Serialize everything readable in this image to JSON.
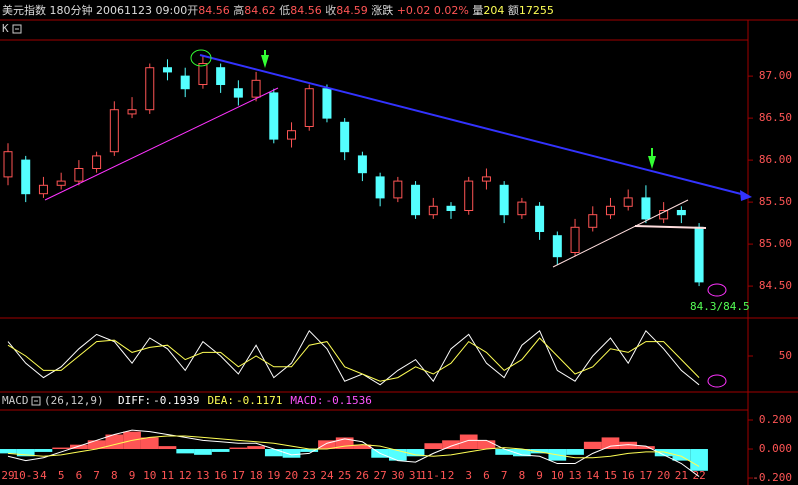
{
  "header": {
    "symbol": "美元指数",
    "period": "180分钟",
    "date": "20061123",
    "time": "09:00",
    "fields": [
      {
        "label": "开",
        "value": 84.56
      },
      {
        "label": "高",
        "value": 84.62
      },
      {
        "label": "低",
        "value": 84.56
      },
      {
        "label": "收",
        "value": 84.59
      }
    ],
    "change_label": "涨跌",
    "change": "+0.02",
    "change_pct": "0.02%",
    "volume_label": "量",
    "volume": 204,
    "amount_label": "额",
    "amount": 17255
  },
  "chart_data": [
    {
      "type": "candlestick",
      "panel_label": "K",
      "annotation": "84.3/84.5",
      "categories": [
        "29",
        "10-3",
        "4",
        "5",
        "6",
        "7",
        "8",
        "9",
        "10",
        "11",
        "12",
        "13",
        "16",
        "17",
        "18",
        "19",
        "20",
        "23",
        "24",
        "25",
        "26",
        "27",
        "30",
        "31",
        "11-1",
        "2",
        "3",
        "6",
        "7",
        "8",
        "9",
        "10",
        "13",
        "14",
        "15",
        "16",
        "17",
        "20",
        "21",
        "22"
      ],
      "open": [
        85.8,
        86.0,
        85.6,
        85.7,
        85.75,
        85.9,
        86.1,
        86.55,
        86.6,
        87.1,
        87.0,
        86.9,
        87.1,
        86.85,
        86.75,
        86.8,
        86.25,
        86.4,
        86.85,
        86.45,
        86.05,
        85.8,
        85.55,
        85.7,
        85.35,
        85.45,
        85.4,
        85.75,
        85.7,
        85.35,
        85.45,
        85.1,
        84.9,
        85.2,
        85.35,
        85.45,
        85.55,
        85.3,
        85.4,
        85.2
      ],
      "high": [
        86.2,
        86.05,
        85.8,
        85.85,
        86.0,
        86.1,
        86.7,
        86.75,
        87.15,
        87.2,
        87.1,
        87.25,
        87.15,
        86.95,
        87.05,
        86.85,
        86.45,
        86.9,
        86.9,
        86.5,
        86.1,
        85.85,
        85.8,
        85.75,
        85.55,
        85.5,
        85.8,
        85.9,
        85.75,
        85.55,
        85.5,
        85.15,
        85.3,
        85.45,
        85.55,
        85.65,
        85.7,
        85.5,
        85.45,
        85.25
      ],
      "low": [
        85.7,
        85.5,
        85.55,
        85.65,
        85.7,
        85.85,
        86.05,
        86.5,
        86.55,
        86.95,
        86.75,
        86.85,
        86.8,
        86.65,
        86.7,
        86.2,
        86.15,
        86.35,
        86.45,
        86.0,
        85.75,
        85.45,
        85.5,
        85.3,
        85.3,
        85.3,
        85.35,
        85.65,
        85.25,
        85.3,
        85.05,
        84.75,
        84.85,
        85.15,
        85.3,
        85.4,
        85.25,
        85.25,
        85.25,
        84.5
      ],
      "close": [
        86.1,
        85.6,
        85.7,
        85.75,
        85.9,
        86.05,
        86.6,
        86.6,
        87.1,
        87.05,
        86.85,
        87.15,
        86.9,
        86.75,
        86.95,
        86.25,
        86.35,
        86.85,
        86.5,
        86.1,
        85.85,
        85.55,
        85.75,
        85.35,
        85.45,
        85.4,
        85.75,
        85.8,
        85.35,
        85.5,
        85.15,
        84.85,
        85.2,
        85.35,
        85.45,
        85.55,
        85.3,
        85.4,
        85.35,
        84.55
      ],
      "up_color": "#ff5555",
      "down_color": "#54ffff",
      "ylim": [
        84.12,
        87.43
      ],
      "yticks": [
        {
          "value": 87,
          "label": "87.00"
        },
        {
          "value": 86.5,
          "label": "86.50"
        },
        {
          "value": 86,
          "label": "86.00"
        },
        {
          "value": 85.5,
          "label": "85.50"
        },
        {
          "value": 85,
          "label": "85.00"
        },
        {
          "value": 84.5,
          "label": "84.50"
        }
      ]
    },
    {
      "type": "line",
      "ylim": [
        0,
        100
      ],
      "yticks": [
        50
      ],
      "series": [
        {
          "color": "#ffffff",
          "values": [
            70,
            40,
            20,
            35,
            60,
            80,
            70,
            40,
            75,
            60,
            30,
            70,
            50,
            25,
            65,
            20,
            40,
            85,
            60,
            15,
            25,
            10,
            30,
            45,
            15,
            60,
            80,
            40,
            20,
            65,
            85,
            30,
            15,
            50,
            75,
            40,
            85,
            60,
            30,
            10
          ]
        },
        {
          "color": "#ffff55",
          "values": [
            65,
            50,
            30,
            30,
            50,
            70,
            72,
            55,
            62,
            65,
            45,
            55,
            55,
            35,
            50,
            35,
            35,
            65,
            70,
            35,
            25,
            15,
            20,
            35,
            25,
            40,
            70,
            55,
            30,
            45,
            75,
            50,
            25,
            35,
            60,
            55,
            70,
            70,
            45,
            20
          ]
        }
      ]
    },
    {
      "type": "macd",
      "title": "MACD",
      "params": "(26,12,9)",
      "ylim": [
        -0.248,
        0.269
      ],
      "yticks": [
        {
          "value": 0.2,
          "label": "0.200"
        },
        {
          "value": 0,
          "label": "0.000"
        },
        {
          "value": -0.2,
          "label": "-0.200"
        }
      ],
      "readouts": [
        {
          "label": "DIFF:",
          "value": -0.1939,
          "color": "#ffffff"
        },
        {
          "label": "DEA:",
          "value": -0.1171,
          "color": "#ffff55"
        },
        {
          "label": "MACD:",
          "value": -0.1536,
          "color": "#ff55ff"
        }
      ],
      "histogram": [
        -0.03,
        -0.05,
        -0.02,
        0.01,
        0.03,
        0.06,
        0.1,
        0.12,
        0.08,
        0.02,
        -0.03,
        -0.04,
        -0.02,
        0.01,
        0.02,
        -0.05,
        -0.06,
        -0.02,
        0.06,
        0.08,
        0.03,
        -0.06,
        -0.08,
        -0.05,
        0.04,
        0.06,
        0.1,
        0.06,
        -0.04,
        -0.05,
        -0.03,
        -0.08,
        -0.04,
        0.05,
        0.08,
        0.05,
        0.02,
        -0.05,
        -0.08,
        -0.15
      ],
      "up_color": "#ff5555",
      "down_color": "#54ffff",
      "series": [
        {
          "name": "DIFF",
          "color": "#ffffff",
          "values": [
            -0.05,
            -0.08,
            -0.06,
            -0.02,
            0.02,
            0.06,
            0.1,
            0.13,
            0.12,
            0.1,
            0.08,
            0.06,
            0.05,
            0.04,
            0.04,
            0,
            -0.04,
            -0.03,
            0.04,
            0.07,
            0.05,
            -0.03,
            -0.08,
            -0.09,
            -0.03,
            0.02,
            0.06,
            0.06,
            0,
            -0.04,
            -0.05,
            -0.1,
            -0.1,
            -0.03,
            0.02,
            0.03,
            0.02,
            -0.04,
            -0.1,
            -0.19
          ]
        },
        {
          "name": "DEA",
          "color": "#ffff55",
          "values": [
            -0.03,
            -0.04,
            -0.05,
            -0.04,
            -0.02,
            0,
            0.03,
            0.06,
            0.08,
            0.09,
            0.09,
            0.08,
            0.07,
            0.06,
            0.05,
            0.04,
            0.02,
            0,
            0,
            0.02,
            0.03,
            0.02,
            -0.01,
            -0.04,
            -0.05,
            -0.04,
            -0.02,
            0,
            0.01,
            0,
            -0.02,
            -0.04,
            -0.06,
            -0.06,
            -0.05,
            -0.03,
            -0.02,
            -0.02,
            -0.05,
            -0.12
          ]
        }
      ]
    }
  ]
}
